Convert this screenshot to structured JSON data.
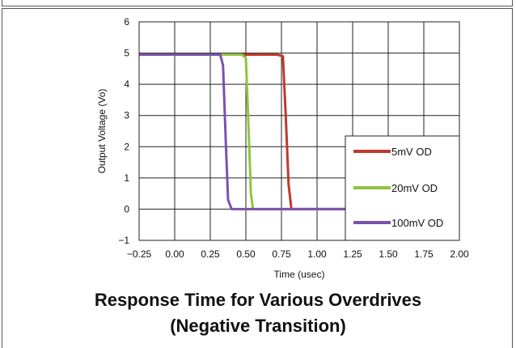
{
  "chart_data": {
    "type": "line",
    "title": "Response Time for Various Overdrives",
    "subtitle": "(Negative Transition)",
    "xlabel": "Time (usec)",
    "ylabel": "Output Voltage (Vo)",
    "xlim": [
      -0.25,
      2.0
    ],
    "ylim": [
      -1,
      6
    ],
    "xticks": [
      "−0.25",
      "0.00",
      "0.25",
      "0.50",
      "0.75",
      "1.00",
      "1.25",
      "1.50",
      "1.75",
      "2.00"
    ],
    "yticks": [
      "−1",
      "0",
      "1",
      "2",
      "3",
      "4",
      "5",
      "6"
    ],
    "grid": true,
    "legend_position": "bottom-right",
    "series": [
      {
        "name": "5mV OD",
        "color": "#c0392b",
        "x": [
          -0.25,
          0.72,
          0.76,
          0.78,
          0.8,
          0.82,
          2.0
        ],
        "y": [
          4.95,
          4.95,
          4.9,
          3.0,
          0.8,
          0.0,
          0.0
        ]
      },
      {
        "name": "20mV OD",
        "color": "#8dc63f",
        "x": [
          -0.25,
          0.47,
          0.5,
          0.52,
          0.535,
          0.55,
          2.0
        ],
        "y": [
          4.95,
          4.95,
          4.85,
          2.5,
          0.5,
          0.0,
          0.0
        ]
      },
      {
        "name": "100mV OD",
        "color": "#7b52ab",
        "x": [
          -0.25,
          0.32,
          0.34,
          0.36,
          0.375,
          0.4,
          2.0
        ],
        "y": [
          4.95,
          4.95,
          4.6,
          2.0,
          0.3,
          0.0,
          0.0
        ]
      }
    ]
  }
}
